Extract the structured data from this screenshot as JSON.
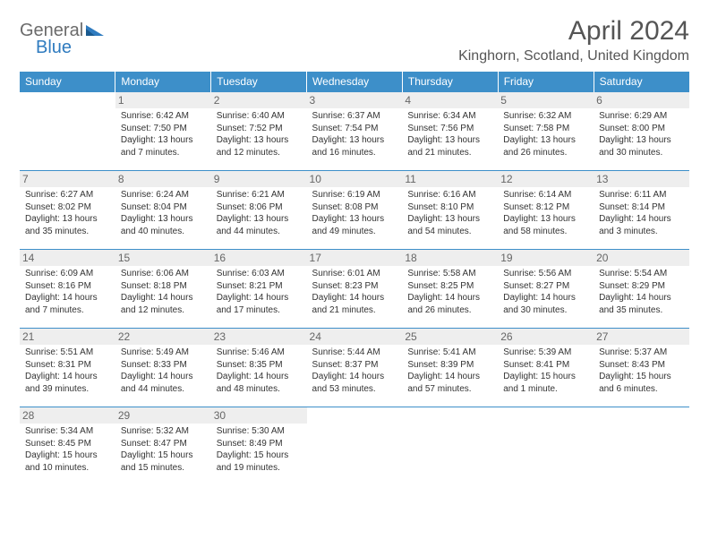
{
  "logo": {
    "word1": "General",
    "word2": "Blue"
  },
  "title": "April 2024",
  "location": "Kinghorn, Scotland, United Kingdom",
  "colors": {
    "header_bg": "#3d8fc9",
    "header_fg": "#ffffff",
    "day_banner_bg": "#eeeeee",
    "text": "#333333"
  },
  "dayNames": [
    "Sunday",
    "Monday",
    "Tuesday",
    "Wednesday",
    "Thursday",
    "Friday",
    "Saturday"
  ],
  "weeks": [
    [
      null,
      {
        "n": "1",
        "sr": "Sunrise: 6:42 AM",
        "ss": "Sunset: 7:50 PM",
        "d1": "Daylight: 13 hours",
        "d2": "and 7 minutes."
      },
      {
        "n": "2",
        "sr": "Sunrise: 6:40 AM",
        "ss": "Sunset: 7:52 PM",
        "d1": "Daylight: 13 hours",
        "d2": "and 12 minutes."
      },
      {
        "n": "3",
        "sr": "Sunrise: 6:37 AM",
        "ss": "Sunset: 7:54 PM",
        "d1": "Daylight: 13 hours",
        "d2": "and 16 minutes."
      },
      {
        "n": "4",
        "sr": "Sunrise: 6:34 AM",
        "ss": "Sunset: 7:56 PM",
        "d1": "Daylight: 13 hours",
        "d2": "and 21 minutes."
      },
      {
        "n": "5",
        "sr": "Sunrise: 6:32 AM",
        "ss": "Sunset: 7:58 PM",
        "d1": "Daylight: 13 hours",
        "d2": "and 26 minutes."
      },
      {
        "n": "6",
        "sr": "Sunrise: 6:29 AM",
        "ss": "Sunset: 8:00 PM",
        "d1": "Daylight: 13 hours",
        "d2": "and 30 minutes."
      }
    ],
    [
      {
        "n": "7",
        "sr": "Sunrise: 6:27 AM",
        "ss": "Sunset: 8:02 PM",
        "d1": "Daylight: 13 hours",
        "d2": "and 35 minutes."
      },
      {
        "n": "8",
        "sr": "Sunrise: 6:24 AM",
        "ss": "Sunset: 8:04 PM",
        "d1": "Daylight: 13 hours",
        "d2": "and 40 minutes."
      },
      {
        "n": "9",
        "sr": "Sunrise: 6:21 AM",
        "ss": "Sunset: 8:06 PM",
        "d1": "Daylight: 13 hours",
        "d2": "and 44 minutes."
      },
      {
        "n": "10",
        "sr": "Sunrise: 6:19 AM",
        "ss": "Sunset: 8:08 PM",
        "d1": "Daylight: 13 hours",
        "d2": "and 49 minutes."
      },
      {
        "n": "11",
        "sr": "Sunrise: 6:16 AM",
        "ss": "Sunset: 8:10 PM",
        "d1": "Daylight: 13 hours",
        "d2": "and 54 minutes."
      },
      {
        "n": "12",
        "sr": "Sunrise: 6:14 AM",
        "ss": "Sunset: 8:12 PM",
        "d1": "Daylight: 13 hours",
        "d2": "and 58 minutes."
      },
      {
        "n": "13",
        "sr": "Sunrise: 6:11 AM",
        "ss": "Sunset: 8:14 PM",
        "d1": "Daylight: 14 hours",
        "d2": "and 3 minutes."
      }
    ],
    [
      {
        "n": "14",
        "sr": "Sunrise: 6:09 AM",
        "ss": "Sunset: 8:16 PM",
        "d1": "Daylight: 14 hours",
        "d2": "and 7 minutes."
      },
      {
        "n": "15",
        "sr": "Sunrise: 6:06 AM",
        "ss": "Sunset: 8:18 PM",
        "d1": "Daylight: 14 hours",
        "d2": "and 12 minutes."
      },
      {
        "n": "16",
        "sr": "Sunrise: 6:03 AM",
        "ss": "Sunset: 8:21 PM",
        "d1": "Daylight: 14 hours",
        "d2": "and 17 minutes."
      },
      {
        "n": "17",
        "sr": "Sunrise: 6:01 AM",
        "ss": "Sunset: 8:23 PM",
        "d1": "Daylight: 14 hours",
        "d2": "and 21 minutes."
      },
      {
        "n": "18",
        "sr": "Sunrise: 5:58 AM",
        "ss": "Sunset: 8:25 PM",
        "d1": "Daylight: 14 hours",
        "d2": "and 26 minutes."
      },
      {
        "n": "19",
        "sr": "Sunrise: 5:56 AM",
        "ss": "Sunset: 8:27 PM",
        "d1": "Daylight: 14 hours",
        "d2": "and 30 minutes."
      },
      {
        "n": "20",
        "sr": "Sunrise: 5:54 AM",
        "ss": "Sunset: 8:29 PM",
        "d1": "Daylight: 14 hours",
        "d2": "and 35 minutes."
      }
    ],
    [
      {
        "n": "21",
        "sr": "Sunrise: 5:51 AM",
        "ss": "Sunset: 8:31 PM",
        "d1": "Daylight: 14 hours",
        "d2": "and 39 minutes."
      },
      {
        "n": "22",
        "sr": "Sunrise: 5:49 AM",
        "ss": "Sunset: 8:33 PM",
        "d1": "Daylight: 14 hours",
        "d2": "and 44 minutes."
      },
      {
        "n": "23",
        "sr": "Sunrise: 5:46 AM",
        "ss": "Sunset: 8:35 PM",
        "d1": "Daylight: 14 hours",
        "d2": "and 48 minutes."
      },
      {
        "n": "24",
        "sr": "Sunrise: 5:44 AM",
        "ss": "Sunset: 8:37 PM",
        "d1": "Daylight: 14 hours",
        "d2": "and 53 minutes."
      },
      {
        "n": "25",
        "sr": "Sunrise: 5:41 AM",
        "ss": "Sunset: 8:39 PM",
        "d1": "Daylight: 14 hours",
        "d2": "and 57 minutes."
      },
      {
        "n": "26",
        "sr": "Sunrise: 5:39 AM",
        "ss": "Sunset: 8:41 PM",
        "d1": "Daylight: 15 hours",
        "d2": "and 1 minute."
      },
      {
        "n": "27",
        "sr": "Sunrise: 5:37 AM",
        "ss": "Sunset: 8:43 PM",
        "d1": "Daylight: 15 hours",
        "d2": "and 6 minutes."
      }
    ],
    [
      {
        "n": "28",
        "sr": "Sunrise: 5:34 AM",
        "ss": "Sunset: 8:45 PM",
        "d1": "Daylight: 15 hours",
        "d2": "and 10 minutes."
      },
      {
        "n": "29",
        "sr": "Sunrise: 5:32 AM",
        "ss": "Sunset: 8:47 PM",
        "d1": "Daylight: 15 hours",
        "d2": "and 15 minutes."
      },
      {
        "n": "30",
        "sr": "Sunrise: 5:30 AM",
        "ss": "Sunset: 8:49 PM",
        "d1": "Daylight: 15 hours",
        "d2": "and 19 minutes."
      },
      null,
      null,
      null,
      null
    ]
  ]
}
